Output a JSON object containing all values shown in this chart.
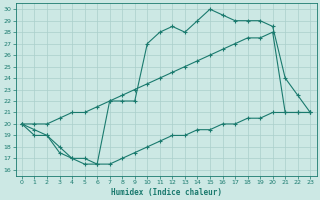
{
  "xlabel": "Humidex (Indice chaleur)",
  "bg_color": "#cce8e4",
  "line_color": "#1a7a6e",
  "grid_color": "#aacfcb",
  "xlim": [
    -0.5,
    23.5
  ],
  "ylim": [
    15.5,
    30.5
  ],
  "xticks": [
    0,
    1,
    2,
    3,
    4,
    5,
    6,
    7,
    8,
    9,
    10,
    11,
    12,
    13,
    14,
    15,
    16,
    17,
    18,
    19,
    20,
    21,
    22,
    23
  ],
  "yticks": [
    16,
    17,
    18,
    19,
    20,
    21,
    22,
    23,
    24,
    25,
    26,
    27,
    28,
    29,
    30
  ],
  "line_jagged_x": [
    0,
    1,
    2,
    3,
    4,
    5,
    6,
    7,
    8,
    9,
    10,
    11,
    12,
    13,
    14,
    15,
    16,
    17,
    18,
    19,
    20,
    21,
    22,
    23
  ],
  "line_jagged_y": [
    20,
    19,
    19,
    18,
    17,
    17,
    16.5,
    22,
    22,
    22,
    27,
    28,
    28.5,
    28,
    29,
    30,
    29.5,
    29,
    29,
    29,
    28.5,
    24,
    22.5,
    21
  ],
  "line_diag_x": [
    0,
    1,
    2,
    3,
    4,
    5,
    6,
    7,
    8,
    9,
    10,
    11,
    12,
    13,
    14,
    15,
    16,
    17,
    18,
    19,
    20,
    21,
    22,
    23
  ],
  "line_diag_y": [
    20,
    20,
    20,
    20.5,
    21,
    21,
    21.5,
    22,
    22.5,
    23,
    23.5,
    24,
    24.5,
    25,
    25.5,
    26,
    26.5,
    27,
    27.5,
    27.5,
    28,
    21,
    21,
    21
  ],
  "line_bottom_x": [
    0,
    1,
    2,
    3,
    4,
    5,
    6,
    7,
    8,
    9,
    10,
    11,
    12,
    13,
    14,
    15,
    16,
    17,
    18,
    19,
    20,
    21,
    22,
    23
  ],
  "line_bottom_y": [
    20,
    19.5,
    19,
    17.5,
    17,
    16.5,
    16.5,
    16.5,
    17,
    17.5,
    18,
    18.5,
    19,
    19,
    19.5,
    19.5,
    20,
    20,
    20.5,
    20.5,
    21,
    21,
    21,
    21
  ]
}
